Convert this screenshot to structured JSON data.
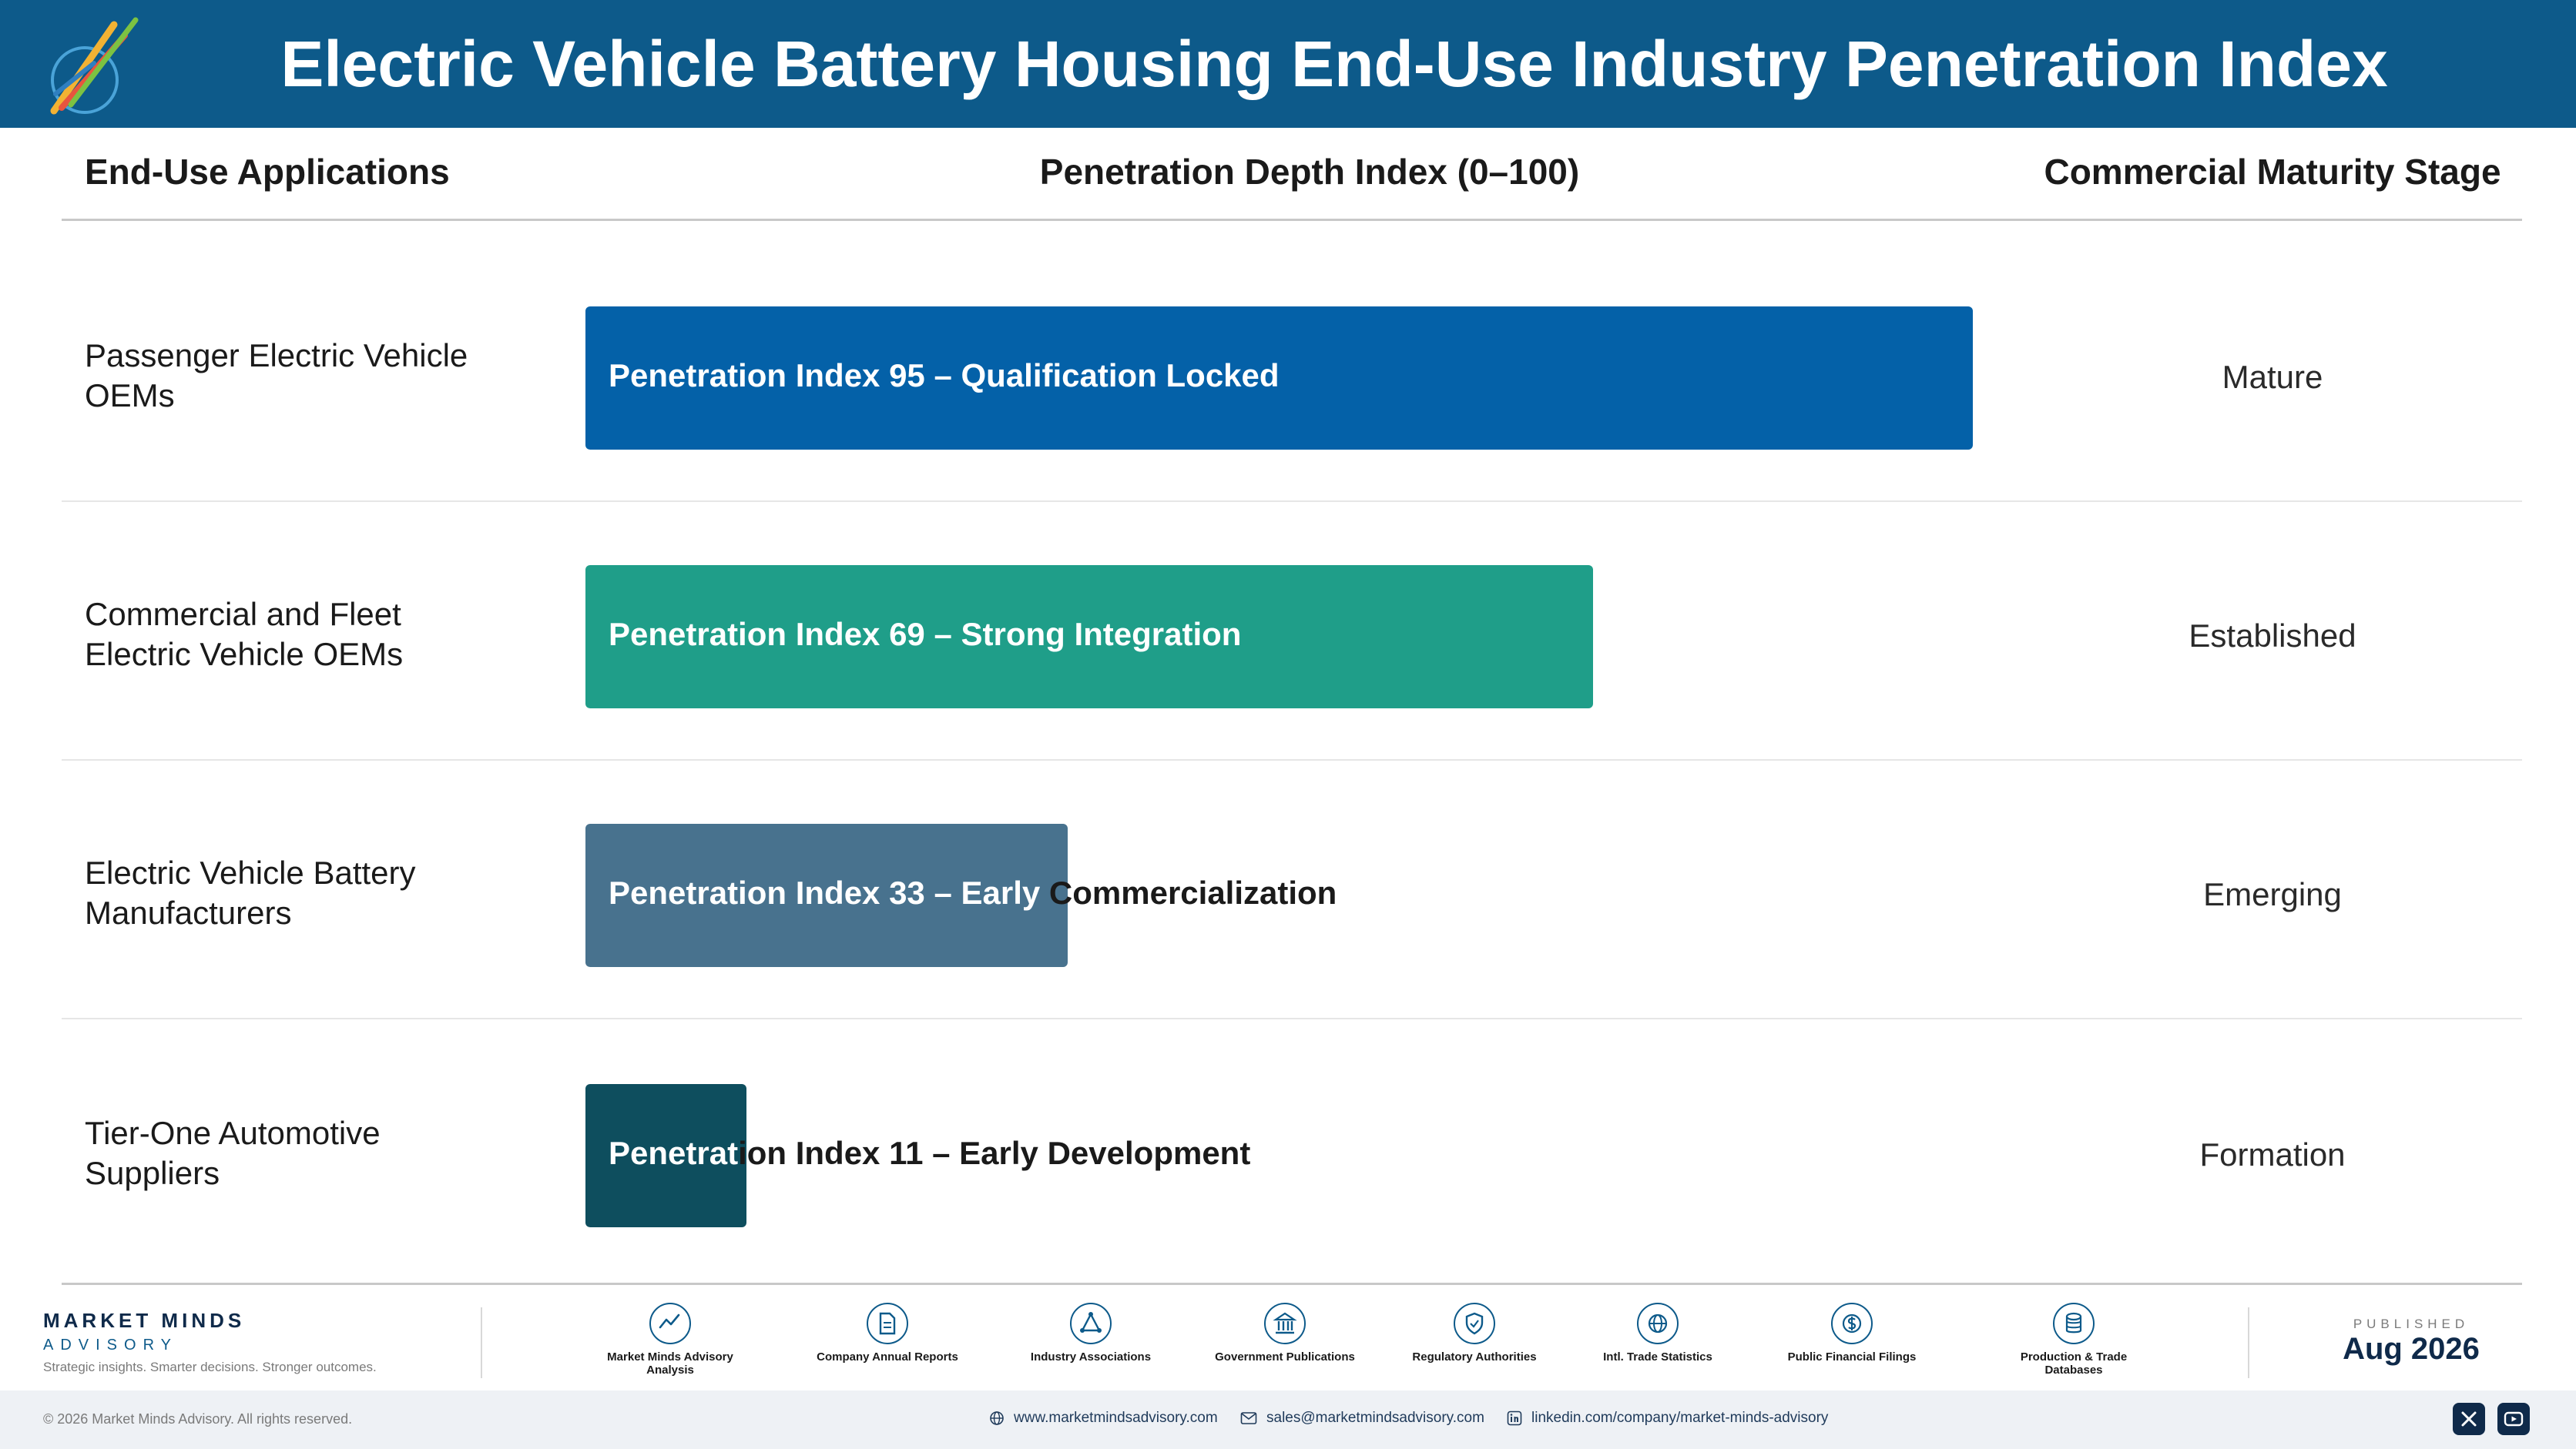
{
  "header": {
    "title": "Electric Vehicle Battery Housing End-Use Industry Penetration Index"
  },
  "columns": {
    "applications": "End-Use Applications",
    "depth": "Penetration Depth Index (0–100)",
    "stage": "Commercial Maturity Stage"
  },
  "chart_data": {
    "type": "bar",
    "orientation": "horizontal",
    "xlim": [
      0,
      100
    ],
    "categories": [
      "Passenger Electric Vehicle OEMs",
      "Commercial and Fleet Electric Vehicle OEMs",
      "Electric Vehicle Battery Manufacturers",
      "Tier-One Automotive Suppliers"
    ],
    "values": [
      95,
      69,
      33,
      11
    ],
    "bar_labels": [
      "Penetration Index 95 – Qualification Locked",
      "Penetration Index 69 – Strong Integration",
      "Penetration Index 33 – Early Commercialization",
      "Penetration Index 11 – Early Development"
    ],
    "stages": [
      "Mature",
      "Established",
      "Emerging",
      "Formation"
    ],
    "colors": [
      "#0461a8",
      "#1f9e89",
      "#48728e",
      "#0e4e5e"
    ]
  },
  "footer": {
    "brand": {
      "name": "MARKET MINDS",
      "sub": "ADVISORY",
      "tagline": "Strategic insights. Smarter decisions. Stronger outcomes."
    },
    "sources": [
      {
        "label": "Market Minds Advisory Analysis",
        "icon": "chart-icon"
      },
      {
        "label": "Company Annual Reports",
        "icon": "document-icon"
      },
      {
        "label": "Industry Associations",
        "icon": "network-icon"
      },
      {
        "label": "Government Publications",
        "icon": "building-icon"
      },
      {
        "label": "Regulatory Authorities",
        "icon": "shield-icon"
      },
      {
        "label": "Intl. Trade Statistics",
        "icon": "globe-icon"
      },
      {
        "label": "Public Financial Filings",
        "icon": "dollar-icon"
      },
      {
        "label": "Production & Trade Databases",
        "icon": "database-icon"
      }
    ],
    "published_label": "PUBLISHED",
    "published_date": "Aug 2026",
    "copyright": "© 2026 Market Minds Advisory. All rights reserved.",
    "website": "www.marketmindsadvisory.com",
    "email": "sales@marketmindsadvisory.com",
    "linkedin": "linkedin.com/company/market-minds-advisory",
    "social": [
      "x-icon",
      "youtube-icon"
    ]
  }
}
